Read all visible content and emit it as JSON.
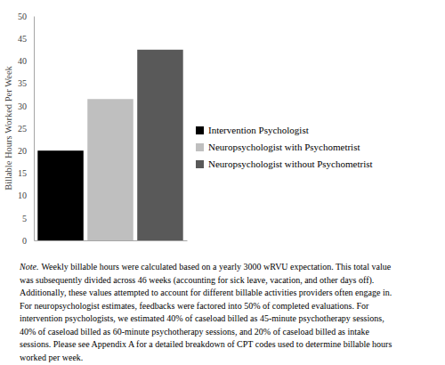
{
  "chart_data": {
    "type": "bar",
    "y_label": "Billable Hours Worked Per Week",
    "categories": [
      null
    ],
    "series": [
      {
        "name": "Intervention Psychologist",
        "color": "#000000",
        "values": [
          20
        ]
      },
      {
        "name": "Neuropsychologist with Psychometrist",
        "color": "#bfbfbf",
        "values": [
          31.5
        ]
      },
      {
        "name": "Neuropsychologist without Psychometrist",
        "color": "#595959",
        "values": [
          42.5
        ]
      }
    ],
    "ylim": [
      0,
      50
    ],
    "yticks": [
      0,
      5,
      10,
      15,
      20,
      25,
      30,
      35,
      40,
      45,
      50
    ],
    "grid": false,
    "legend": "right",
    "note_label": "Note.",
    "note": [
      "Weekly billable hours were calculated based on a yearly 3000 wRVU expectation. This total value",
      "was subsequently divided across 46 weeks (accounting for sick leave, vacation, and other days off).",
      "Additionally, these values attempted to account for different billable activities providers often engage in.",
      "For neuropsychologist estimates, feedbacks were factored into 50% of completed evaluations. For",
      "intervention psychologists, we estimated 40% of caseload billed as 45-minute psychotherapy sessions,",
      "40% of caseload billed as 60-minute psychotherapy sessions, and 20% of caseload billed as intake",
      "sessions. Please see Appendix A for a detailed breakdown of CPT codes used to determine billable hours",
      "worked per week."
    ]
  }
}
